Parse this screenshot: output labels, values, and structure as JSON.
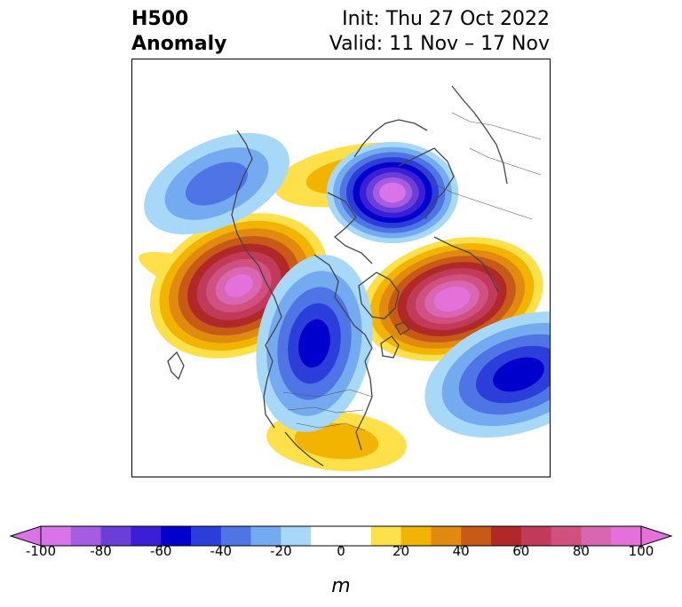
{
  "title": {
    "left_line1": "H500",
    "left_line2": "Anomaly",
    "init": "Init: Thu 27 Oct 2022",
    "valid": "Valid: 11 Nov – 17 Nov"
  },
  "colorbar": {
    "unit": "m",
    "ticks": [
      "-100",
      "-80",
      "-60",
      "-40",
      "-20",
      "0",
      "20",
      "40",
      "60",
      "80",
      "100"
    ],
    "tick_values": [
      -100,
      -80,
      -60,
      -40,
      -20,
      0,
      20,
      40,
      60,
      80,
      100
    ],
    "bins": [
      {
        "min": -100,
        "max": -90,
        "color": "#d874e8"
      },
      {
        "min": -90,
        "max": -80,
        "color": "#a65ce0"
      },
      {
        "min": -80,
        "max": -70,
        "color": "#6a3fd8"
      },
      {
        "min": -70,
        "max": -60,
        "color": "#3a1fd6"
      },
      {
        "min": -60,
        "max": -50,
        "color": "#0000cc"
      },
      {
        "min": -50,
        "max": -40,
        "color": "#2b3ed9"
      },
      {
        "min": -40,
        "max": -30,
        "color": "#4f74e6"
      },
      {
        "min": -30,
        "max": -20,
        "color": "#74aaf0"
      },
      {
        "min": -20,
        "max": -10,
        "color": "#a8d8f8"
      },
      {
        "min": -10,
        "max": 10,
        "color": "#ffffff"
      },
      {
        "min": 10,
        "max": 20,
        "color": "#fde04a"
      },
      {
        "min": 20,
        "max": 30,
        "color": "#f2b400"
      },
      {
        "min": 30,
        "max": 40,
        "color": "#e08a10"
      },
      {
        "min": 40,
        "max": 50,
        "color": "#c85a18"
      },
      {
        "min": 50,
        "max": 60,
        "color": "#b02828"
      },
      {
        "min": 60,
        "max": 70,
        "color": "#c23a5a"
      },
      {
        "min": 70,
        "max": 80,
        "color": "#d05080"
      },
      {
        "min": 80,
        "max": 90,
        "color": "#d866b0"
      },
      {
        "min": 90,
        "max": 100,
        "color": "#e470da"
      }
    ],
    "extend_low_color": "#d874e8",
    "extend_high_color": "#e470da"
  },
  "map": {
    "projection": "north-polar-stereographic",
    "coastline_color": "#444444"
  }
}
